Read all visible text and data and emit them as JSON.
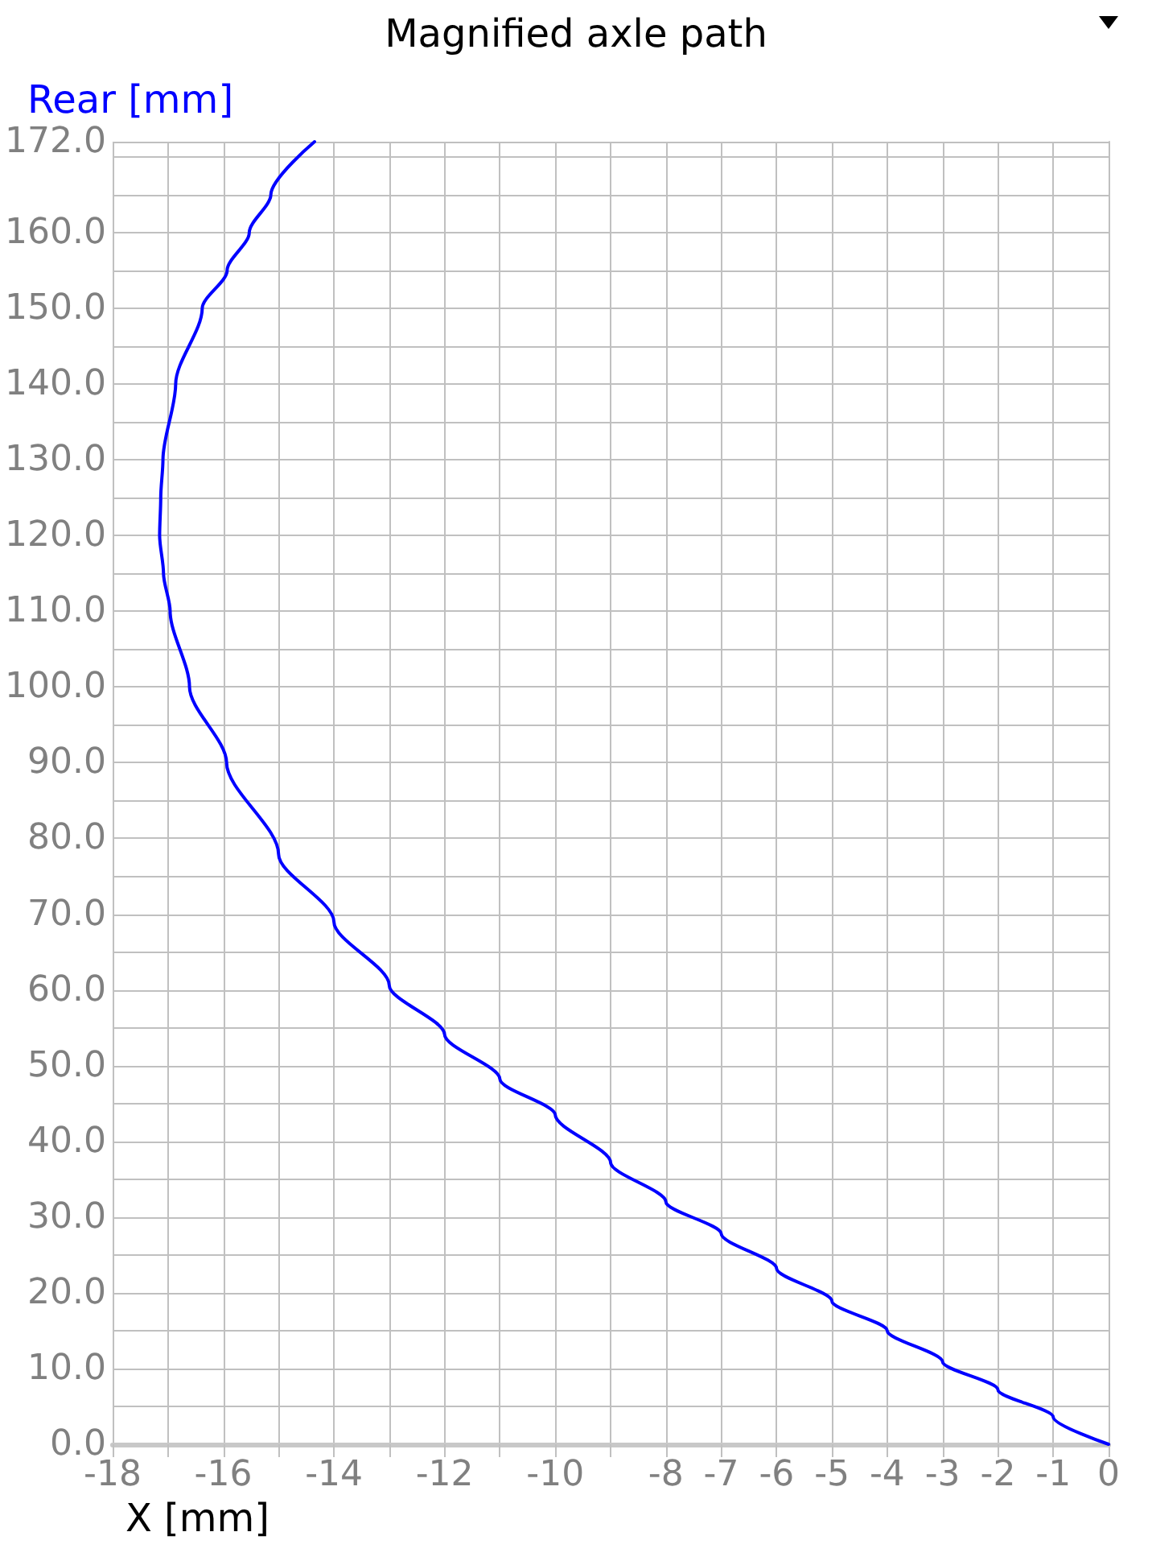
{
  "chart_data": {
    "type": "line",
    "title": "Magnified axle path",
    "xlabel": "X [mm]",
    "ylabel": "Rear [mm]",
    "grid": true,
    "marker": "none",
    "xlim": [
      -18,
      0
    ],
    "xticks": [
      -18,
      {
        "value": -17,
        "label": null
      },
      -16,
      {
        "value": -15,
        "label": null
      },
      -14,
      {
        "value": -13,
        "label": null
      },
      -12,
      {
        "value": -11,
        "label": null
      },
      -10,
      {
        "value": -9,
        "label": null
      },
      -8,
      -7,
      -6,
      -5,
      -4,
      -3,
      -2,
      -1,
      0
    ],
    "ylim": [
      0,
      172
    ],
    "yticks": [
      {
        "value": 0,
        "label": "0.0"
      },
      {
        "value": 5,
        "label": null
      },
      {
        "value": 10,
        "label": "10.0"
      },
      {
        "value": 15,
        "label": null
      },
      {
        "value": 20,
        "label": "20.0"
      },
      {
        "value": 25,
        "label": null
      },
      {
        "value": 30,
        "label": "30.0"
      },
      {
        "value": 35,
        "label": null
      },
      {
        "value": 40,
        "label": "40.0"
      },
      {
        "value": 45,
        "label": null
      },
      {
        "value": 50,
        "label": "50.0"
      },
      {
        "value": 55,
        "label": null
      },
      {
        "value": 60,
        "label": "60.0"
      },
      {
        "value": 65,
        "label": null
      },
      {
        "value": 70,
        "label": "70.0"
      },
      {
        "value": 75,
        "label": null
      },
      {
        "value": 80,
        "label": "80.0"
      },
      {
        "value": 85,
        "label": null
      },
      {
        "value": 90,
        "label": "90.0"
      },
      {
        "value": 95,
        "label": null
      },
      {
        "value": 100,
        "label": "100.0"
      },
      {
        "value": 105,
        "label": null
      },
      {
        "value": 110,
        "label": "110.0"
      },
      {
        "value": 115,
        "label": null
      },
      {
        "value": 120,
        "label": "120.0"
      },
      {
        "value": 125,
        "label": null
      },
      {
        "value": 130,
        "label": "130.0"
      },
      {
        "value": 135,
        "label": null
      },
      {
        "value": 140,
        "label": "140.0"
      },
      {
        "value": 145,
        "label": null
      },
      {
        "value": 150,
        "label": "150.0"
      },
      {
        "value": 155,
        "label": null
      },
      {
        "value": 160,
        "label": "160.0"
      },
      {
        "value": 165,
        "label": null
      },
      {
        "value": 170,
        "label": null
      },
      {
        "value": 172,
        "label": "172.0"
      }
    ],
    "series": [
      {
        "color": "#0000ff",
        "x": [
          0,
          -1,
          -2,
          -3,
          -4,
          -5,
          -6,
          -7,
          -8,
          -9,
          -10,
          -11,
          -12,
          -13,
          -14,
          -15,
          -15.94,
          -16.61,
          -16.96,
          -17.08,
          -17.15,
          -17.13,
          -17.09,
          -16.86,
          -16.38,
          -15.93,
          -15.53,
          -15.14,
          -14.35
        ],
        "values": [
          0,
          3.6,
          7.2,
          10.9,
          15.0,
          18.9,
          23.2,
          27.8,
          32.0,
          37.2,
          43.5,
          48.2,
          54.1,
          60.6,
          69.0,
          77.9,
          90,
          100,
          110,
          115,
          120,
          125,
          130,
          140,
          150,
          155,
          160,
          165,
          172
        ]
      }
    ]
  }
}
